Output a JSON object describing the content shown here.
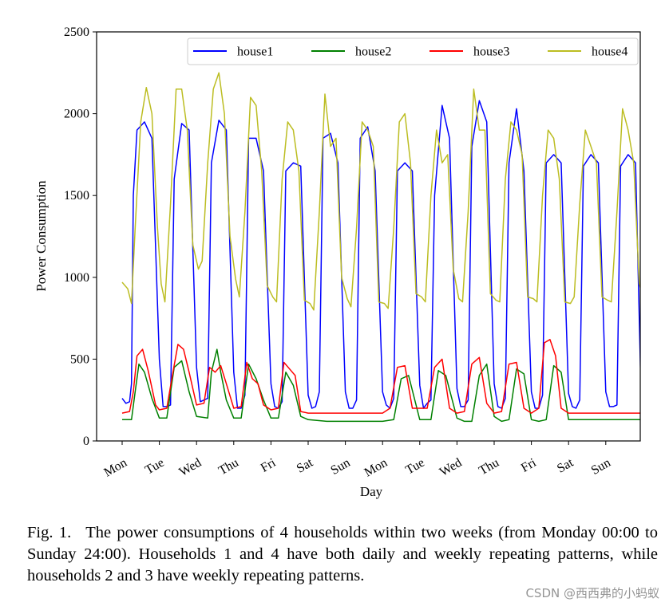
{
  "chart_data": {
    "type": "line",
    "xlabel": "Day",
    "ylabel": "Power Consumption",
    "ylim": [
      0,
      2500
    ],
    "yticks": [
      0,
      500,
      1000,
      1500,
      2000,
      2500
    ],
    "xticks": [
      "Mon",
      "Tue",
      "Wed",
      "Thu",
      "Fri",
      "Sat",
      "Sun",
      "Mon",
      "Tue",
      "Wed",
      "Thu",
      "Fri",
      "Sat",
      "Sun"
    ],
    "xlim": [
      0,
      14
    ],
    "legend_position": "top-right",
    "grid": false,
    "series": [
      {
        "name": "house1",
        "color": "#0000ff",
        "x": [
          0.0,
          0.1,
          0.2,
          0.25,
          0.3,
          0.4,
          0.6,
          0.8,
          1.0,
          1.1,
          1.2,
          1.3,
          1.4,
          1.6,
          1.8,
          2.0,
          2.1,
          2.2,
          2.3,
          2.4,
          2.6,
          2.8,
          3.0,
          3.1,
          3.2,
          3.3,
          3.4,
          3.6,
          3.8,
          4.0,
          4.1,
          4.2,
          4.3,
          4.4,
          4.6,
          4.8,
          5.0,
          5.1,
          5.2,
          5.3,
          5.4,
          5.6,
          5.8,
          6.0,
          6.1,
          6.2,
          6.3,
          6.4,
          6.6,
          6.8,
          7.0,
          7.1,
          7.2,
          7.3,
          7.4,
          7.6,
          7.8,
          8.0,
          8.1,
          8.2,
          8.3,
          8.4,
          8.6,
          8.8,
          9.0,
          9.1,
          9.2,
          9.3,
          9.4,
          9.6,
          9.8,
          10.0,
          10.1,
          10.2,
          10.3,
          10.4,
          10.6,
          10.8,
          11.0,
          11.1,
          11.2,
          11.3,
          11.4,
          11.6,
          11.8,
          12.0,
          12.1,
          12.2,
          12.3,
          12.4,
          12.6,
          12.8,
          13.0,
          13.1,
          13.2,
          13.3,
          13.4,
          13.6,
          13.8,
          13.95
        ],
        "y": [
          260,
          230,
          240,
          350,
          1500,
          1900,
          1950,
          1850,
          500,
          210,
          210,
          220,
          1600,
          1940,
          1900,
          450,
          240,
          250,
          260,
          1700,
          1960,
          1900,
          420,
          200,
          200,
          280,
          1850,
          1850,
          1650,
          350,
          210,
          200,
          240,
          1650,
          1700,
          1680,
          280,
          200,
          210,
          300,
          1850,
          1880,
          1700,
          300,
          200,
          200,
          250,
          1850,
          1920,
          1650,
          300,
          220,
          200,
          260,
          1650,
          1700,
          1650,
          340,
          200,
          230,
          250,
          1500,
          2050,
          1850,
          320,
          210,
          210,
          250,
          1800,
          2080,
          1950,
          350,
          210,
          200,
          260,
          1700,
          2030,
          1650,
          300,
          200,
          200,
          280,
          1700,
          1750,
          1700,
          290,
          210,
          200,
          250,
          1680,
          1750,
          1700,
          300,
          210,
          210,
          220,
          1680,
          1750,
          1700,
          270
        ]
      },
      {
        "name": "house2",
        "color": "#008000",
        "x": [
          0.0,
          0.25,
          0.35,
          0.45,
          0.6,
          0.8,
          1.0,
          1.2,
          1.4,
          1.6,
          1.8,
          2.0,
          2.3,
          2.4,
          2.55,
          2.65,
          2.8,
          3.0,
          3.2,
          3.4,
          3.6,
          3.8,
          4.0,
          4.2,
          4.4,
          4.6,
          4.8,
          5.0,
          5.5,
          6.0,
          6.5,
          7.0,
          7.3,
          7.5,
          7.7,
          8.0,
          8.3,
          8.5,
          8.7,
          9.0,
          9.2,
          9.4,
          9.6,
          9.8,
          10.0,
          10.2,
          10.4,
          10.6,
          10.8,
          11.0,
          11.2,
          11.4,
          11.6,
          11.8,
          12.0,
          12.5,
          13.0,
          13.5,
          13.95
        ],
        "y": [
          130,
          130,
          300,
          470,
          420,
          260,
          140,
          140,
          450,
          490,
          300,
          150,
          140,
          420,
          560,
          420,
          250,
          140,
          140,
          470,
          380,
          250,
          140,
          140,
          420,
          340,
          150,
          130,
          120,
          120,
          120,
          120,
          130,
          380,
          400,
          130,
          130,
          430,
          400,
          140,
          120,
          120,
          400,
          470,
          150,
          120,
          130,
          440,
          410,
          130,
          120,
          130,
          460,
          420,
          130,
          130,
          130,
          130,
          130
        ]
      },
      {
        "name": "house3",
        "color": "#ff0000",
        "x": [
          0.0,
          0.2,
          0.3,
          0.4,
          0.55,
          0.7,
          0.9,
          1.0,
          1.2,
          1.35,
          1.5,
          1.65,
          1.8,
          2.0,
          2.2,
          2.35,
          2.5,
          2.65,
          2.8,
          3.0,
          3.2,
          3.35,
          3.5,
          3.65,
          3.8,
          4.0,
          4.2,
          4.35,
          4.5,
          4.65,
          4.8,
          5.0,
          5.5,
          6.0,
          6.5,
          7.0,
          7.2,
          7.4,
          7.6,
          7.8,
          8.0,
          8.2,
          8.4,
          8.6,
          8.8,
          9.0,
          9.2,
          9.4,
          9.6,
          9.8,
          10.0,
          10.2,
          10.4,
          10.6,
          10.8,
          11.0,
          11.2,
          11.35,
          11.5,
          11.65,
          11.8,
          12.0,
          12.5,
          13.0,
          13.5,
          13.95
        ],
        "y": [
          170,
          180,
          300,
          520,
          560,
          430,
          220,
          190,
          200,
          400,
          590,
          560,
          420,
          220,
          230,
          450,
          420,
          460,
          350,
          200,
          210,
          480,
          380,
          350,
          220,
          190,
          200,
          480,
          440,
          400,
          180,
          170,
          170,
          170,
          170,
          170,
          200,
          450,
          460,
          200,
          200,
          200,
          450,
          500,
          200,
          170,
          180,
          470,
          510,
          230,
          170,
          180,
          470,
          480,
          200,
          170,
          200,
          600,
          620,
          520,
          200,
          170,
          170,
          170,
          170,
          170
        ]
      },
      {
        "name": "house4",
        "color": "#bcbd22",
        "x": [
          0.0,
          0.15,
          0.25,
          0.35,
          0.5,
          0.65,
          0.8,
          0.95,
          1.05,
          1.15,
          1.3,
          1.45,
          1.6,
          1.75,
          1.9,
          2.05,
          2.15,
          2.3,
          2.45,
          2.6,
          2.75,
          2.9,
          3.05,
          3.15,
          3.3,
          3.45,
          3.6,
          3.75,
          3.9,
          4.05,
          4.15,
          4.3,
          4.45,
          4.6,
          4.75,
          4.9,
          5.05,
          5.15,
          5.3,
          5.45,
          5.6,
          5.75,
          5.9,
          6.05,
          6.15,
          6.3,
          6.45,
          6.6,
          6.75,
          6.9,
          7.05,
          7.15,
          7.3,
          7.45,
          7.6,
          7.75,
          7.9,
          8.05,
          8.15,
          8.3,
          8.45,
          8.6,
          8.75,
          8.9,
          9.05,
          9.15,
          9.3,
          9.45,
          9.6,
          9.75,
          9.9,
          10.05,
          10.15,
          10.3,
          10.45,
          10.6,
          10.75,
          10.9,
          11.05,
          11.15,
          11.3,
          11.45,
          11.6,
          11.75,
          11.9,
          12.05,
          12.15,
          12.3,
          12.45,
          12.6,
          12.75,
          12.9,
          13.05,
          13.15,
          13.3,
          13.45,
          13.6,
          13.75,
          13.9,
          13.95
        ],
        "y": [
          970,
          930,
          840,
          1300,
          1950,
          2160,
          2000,
          1300,
          960,
          850,
          1450,
          2150,
          2150,
          1900,
          1200,
          1050,
          1100,
          1700,
          2150,
          2250,
          2000,
          1250,
          990,
          880,
          1400,
          2100,
          2050,
          1650,
          950,
          880,
          850,
          1600,
          1950,
          1900,
          1650,
          860,
          840,
          800,
          1400,
          2120,
          1800,
          1850,
          1000,
          870,
          820,
          1300,
          1950,
          1900,
          1800,
          850,
          840,
          810,
          1300,
          1950,
          2000,
          1700,
          900,
          880,
          850,
          1500,
          1900,
          1700,
          1750,
          1050,
          870,
          850,
          1400,
          2150,
          1900,
          1900,
          900,
          860,
          850,
          1600,
          1950,
          1900,
          1750,
          880,
          870,
          850,
          1500,
          1900,
          1850,
          1600,
          850,
          840,
          880,
          1450,
          1900,
          1800,
          1700,
          880,
          860,
          850,
          1400,
          2030,
          1900,
          1700,
          960,
          920
        ]
      }
    ]
  },
  "caption": {
    "label": "Fig. 1.",
    "text": "The power consumptions of 4 households within two weeks (from Monday 00:00 to Sunday 24:00). Households 1 and 4 have both daily and weekly repeating patterns, while households 2 and 3 have weekly repeating patterns."
  },
  "watermark": "CSDN @西西弗的小蚂蚁"
}
